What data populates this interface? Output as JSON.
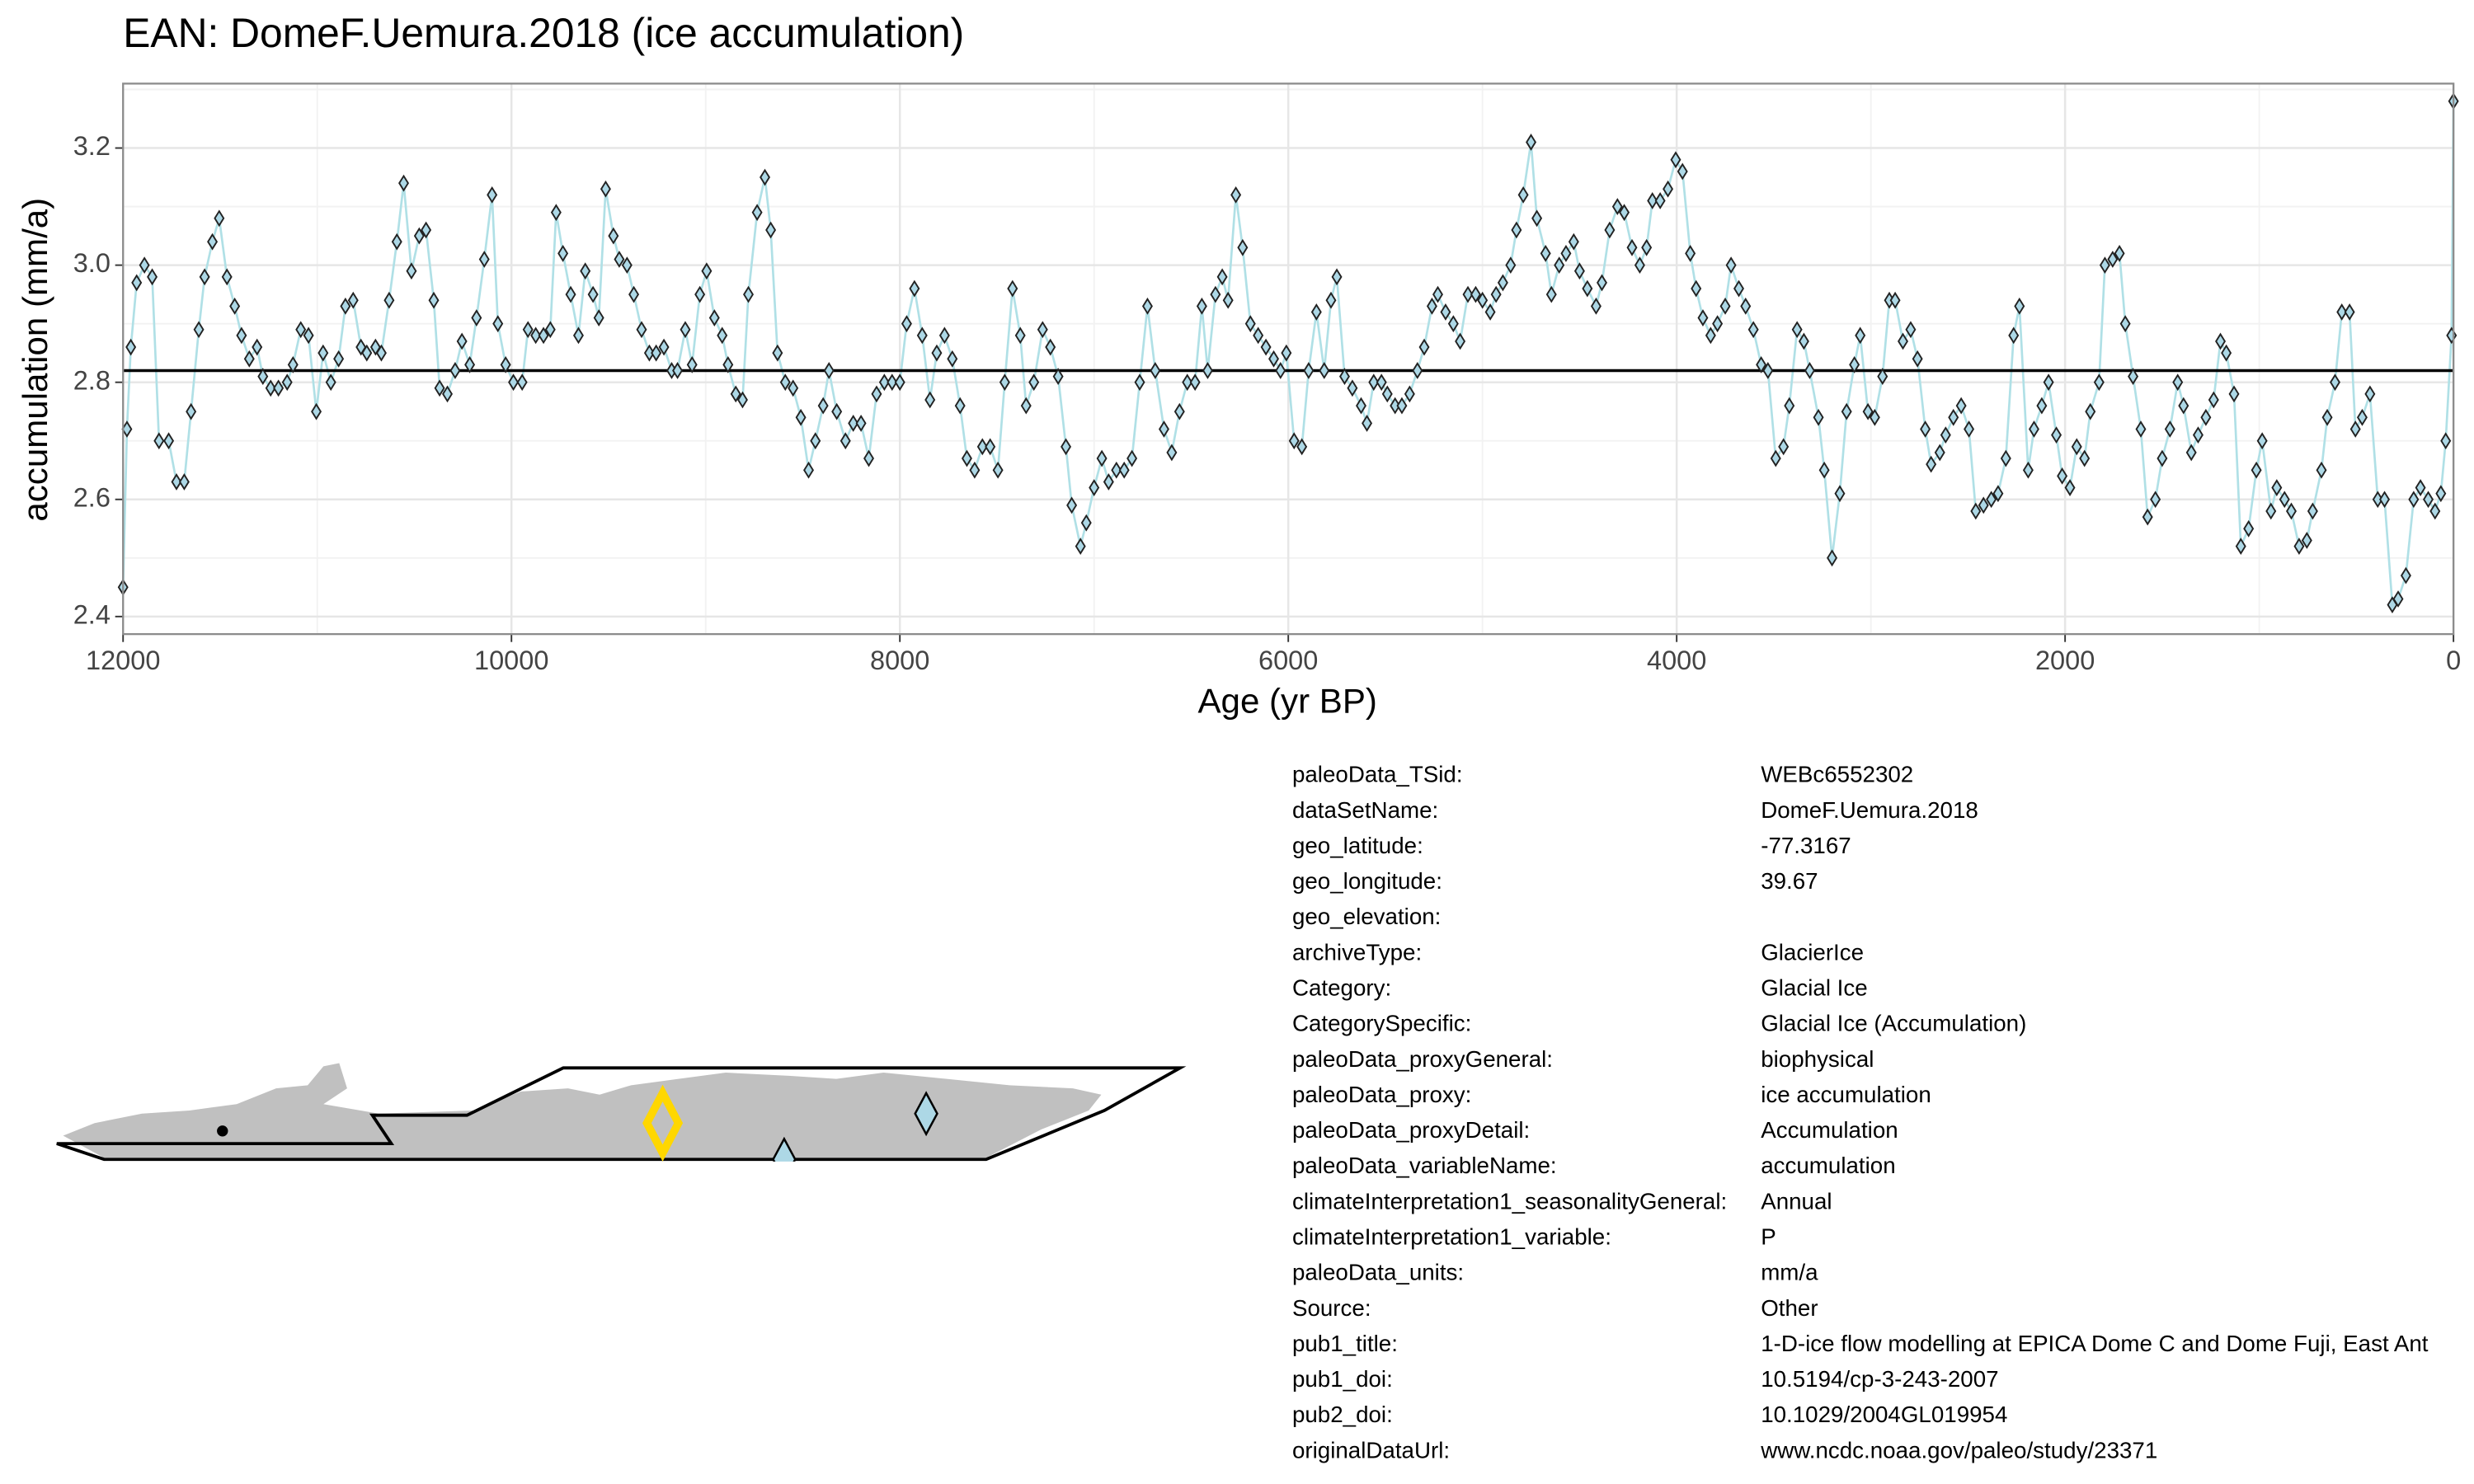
{
  "chart_data": {
    "type": "line",
    "title": "EAN: DomeF.Uemura.2018 (ice accumulation)",
    "x_label": "Age (yr BP)",
    "y_label": "accumulation (mm/a)",
    "xlim": [
      12000,
      0
    ],
    "xticks": [
      12000,
      10000,
      8000,
      6000,
      4000,
      2000,
      0
    ],
    "xminor": [
      11000,
      9000,
      7000,
      5000,
      3000,
      1000
    ],
    "ylim": [
      2.37,
      3.31
    ],
    "yticks": [
      2.4,
      2.6,
      2.8,
      {
        "value": 3,
        "label": "3.0"
      },
      3.2
    ],
    "yminor": [
      2.5,
      2.7,
      2.9,
      3.1,
      3.3
    ],
    "grid": true,
    "mean": 2.82,
    "series": [
      {
        "color": "#b0e0e6",
        "x": [
          12000,
          11980,
          11960,
          11930,
          11890,
          11850,
          11815,
          11765,
          11725,
          11685,
          11650,
          11610,
          11580,
          11540,
          11505,
          11465,
          11425,
          11390,
          11350,
          11310,
          11280,
          11240,
          11200,
          11155,
          11125,
          11085,
          11045,
          11005,
          10970,
          10930,
          10890,
          10855,
          10815,
          10775,
          10745,
          10700,
          10670,
          10630,
          10590,
          10555,
          10515,
          10475,
          10440,
          10400,
          10370,
          10330,
          10290,
          10255,
          10215,
          10180,
          10140,
          10100,
          10070,
          10030,
          9990,
          9945,
          9915,
          9875,
          9835,
          9800,
          9770,
          9735,
          9695,
          9655,
          9620,
          9580,
          9550,
          9515,
          9475,
          9445,
          9405,
          9370,
          9330,
          9290,
          9255,
          9215,
          9175,
          9145,
          9105,
          9070,
          9030,
          8995,
          8955,
          8915,
          8885,
          8845,
          8810,
          8780,
          8735,
          8695,
          8665,
          8630,
          8590,
          8550,
          8510,
          8470,
          8435,
          8395,
          8365,
          8325,
          8280,
          8240,
          8200,
          8160,
          8120,
          8080,
          8040,
          8000,
          7965,
          7925,
          7885,
          7845,
          7810,
          7770,
          7730,
          7690,
          7655,
          7615,
          7575,
          7535,
          7495,
          7460,
          7420,
          7380,
          7350,
          7310,
          7265,
          7225,
          7185,
          7145,
          7115,
          7070,
          7040,
          7000,
          6960,
          6925,
          6885,
          6845,
          6805,
          6765,
          6725,
          6685,
          6640,
          6600,
          6560,
          6520,
          6480,
          6445,
          6415,
          6375,
          6340,
          6310,
          6270,
          6235,
          6195,
          6155,
          6115,
          6075,
          6040,
          6010,
          5970,
          5930,
          5895,
          5855,
          5815,
          5780,
          5750,
          5710,
          5670,
          5625,
          5595,
          5560,
          5520,
          5490,
          5450,
          5415,
          5375,
          5335,
          5300,
          5260,
          5230,
          5190,
          5150,
          5115,
          5075,
          5035,
          5000,
          4960,
          4930,
          4895,
          4855,
          4825,
          4790,
          4750,
          4720,
          4675,
          4645,
          4605,
          4570,
          4530,
          4500,
          4460,
          4415,
          4385,
          4345,
          4305,
          4270,
          4230,
          4190,
          4155,
          4125,
          4085,
          4045,
          4005,
          3970,
          3930,
          3900,
          3865,
          3825,
          3790,
          3750,
          3720,
          3680,
          3645,
          3605,
          3565,
          3530,
          3490,
          3450,
          3420,
          3380,
          3345,
          3315,
          3270,
          3240,
          3200,
          3160,
          3125,
          3085,
          3055,
          3015,
          2980,
          2940,
          2905,
          2875,
          2835,
          2795,
          2760,
          2720,
          2690,
          2645,
          2615,
          2575,
          2535,
          2495,
          2460,
          2420,
          2380,
          2345,
          2305,
          2265,
          2235,
          2190,
          2160,
          2120,
          2085,
          2045,
          2015,
          1975,
          1940,
          1900,
          1870,
          1825,
          1795,
          1755,
          1720,
          1690,
          1650,
          1610,
          1575,
          1535,
          1500,
          1460,
          1420,
          1390,
          1350,
          1315,
          1275,
          1235,
          1200,
          1170,
          1130,
          1095,
          1055,
          1015,
          985,
          940,
          910,
          870,
          835,
          795,
          755,
          725,
          680,
          650,
          610,
          575,
          535,
          505,
          470,
          430,
          390,
          355,
          315,
          285,
          245,
          205,
          170,
          130,
          95,
          65,
          40,
          10,
          0
        ],
        "values": [
          2.45,
          2.72,
          2.86,
          2.97,
          3.0,
          2.98,
          2.7,
          2.7,
          2.63,
          2.63,
          2.75,
          2.89,
          2.98,
          3.04,
          3.08,
          2.98,
          2.93,
          2.88,
          2.84,
          2.86,
          2.81,
          2.79,
          2.79,
          2.8,
          2.83,
          2.89,
          2.88,
          2.75,
          2.85,
          2.8,
          2.84,
          2.93,
          2.94,
          2.86,
          2.85,
          2.86,
          2.85,
          2.94,
          3.04,
          3.14,
          2.99,
          3.05,
          3.06,
          2.94,
          2.79,
          2.78,
          2.82,
          2.87,
          2.83,
          2.91,
          3.01,
          3.12,
          2.9,
          2.83,
          2.8,
          2.8,
          2.89,
          2.88,
          2.88,
          2.89,
          3.09,
          3.02,
          2.95,
          2.88,
          2.99,
          2.95,
          2.91,
          3.13,
          3.05,
          3.01,
          3.0,
          2.95,
          2.89,
          2.85,
          2.85,
          2.86,
          2.82,
          2.82,
          2.89,
          2.83,
          2.95,
          2.99,
          2.91,
          2.88,
          2.83,
          2.78,
          2.77,
          2.95,
          3.09,
          3.15,
          3.06,
          2.85,
          2.8,
          2.79,
          2.74,
          2.65,
          2.7,
          2.76,
          2.82,
          2.75,
          2.7,
          2.73,
          2.73,
          2.67,
          2.78,
          2.8,
          2.8,
          2.8,
          2.9,
          2.96,
          2.88,
          2.77,
          2.85,
          2.88,
          2.84,
          2.76,
          2.67,
          2.65,
          2.69,
          2.69,
          2.65,
          2.8,
          2.96,
          2.88,
          2.76,
          2.8,
          2.89,
          2.86,
          2.81,
          2.69,
          2.59,
          2.52,
          2.56,
          2.62,
          2.67,
          2.63,
          2.65,
          2.65,
          2.67,
          2.8,
          2.93,
          2.82,
          2.72,
          2.68,
          2.75,
          2.8,
          2.8,
          2.93,
          2.82,
          2.95,
          2.98,
          2.94,
          3.12,
          3.03,
          2.9,
          2.88,
          2.86,
          2.84,
          2.82,
          2.85,
          2.7,
          2.69,
          2.82,
          2.92,
          2.82,
          2.94,
          2.98,
          2.81,
          2.79,
          2.76,
          2.73,
          2.8,
          2.8,
          2.78,
          2.76,
          2.76,
          2.78,
          2.82,
          2.86,
          2.93,
          2.95,
          2.92,
          2.9,
          2.87,
          2.95,
          2.95,
          2.94,
          2.92,
          2.95,
          2.97,
          3.0,
          3.06,
          3.12,
          3.21,
          3.08,
          3.02,
          2.95,
          3.0,
          3.02,
          3.04,
          2.99,
          2.96,
          2.93,
          2.97,
          3.06,
          3.1,
          3.09,
          3.03,
          3.0,
          3.03,
          3.11,
          3.11,
          3.13,
          3.18,
          3.16,
          3.02,
          2.96,
          2.91,
          2.88,
          2.9,
          2.93,
          3.0,
          2.96,
          2.93,
          2.89,
          2.83,
          2.82,
          2.67,
          2.69,
          2.76,
          2.89,
          2.87,
          2.82,
          2.74,
          2.65,
          2.5,
          2.61,
          2.75,
          2.83,
          2.88,
          2.75,
          2.74,
          2.81,
          2.94,
          2.94,
          2.87,
          2.89,
          2.84,
          2.72,
          2.66,
          2.68,
          2.71,
          2.74,
          2.76,
          2.72,
          2.58,
          2.59,
          2.6,
          2.61,
          2.67,
          2.88,
          2.93,
          2.65,
          2.72,
          2.76,
          2.8,
          2.71,
          2.64,
          2.62,
          2.69,
          2.67,
          2.75,
          2.8,
          3.0,
          3.01,
          3.02,
          2.9,
          2.81,
          2.72,
          2.57,
          2.6,
          2.67,
          2.72,
          2.8,
          2.76,
          2.68,
          2.71,
          2.74,
          2.77,
          2.87,
          2.85,
          2.78,
          2.52,
          2.55,
          2.65,
          2.7,
          2.58,
          2.62,
          2.6,
          2.58,
          2.52,
          2.53,
          2.58,
          2.65,
          2.74,
          2.8,
          2.92,
          2.92,
          2.72,
          2.74,
          2.78,
          2.6,
          2.6,
          2.42,
          2.43,
          2.47,
          2.6,
          2.62,
          2.6,
          2.58,
          2.61,
          2.7,
          2.88,
          3.28
        ]
      }
    ]
  },
  "metadata": {
    "rows": [
      [
        "paleoData_TSid:",
        "WEBc6552302"
      ],
      [
        "dataSetName:",
        "DomeF.Uemura.2018"
      ],
      [
        "geo_latitude:",
        "-77.3167"
      ],
      [
        "geo_longitude:",
        "39.67"
      ],
      [
        "geo_elevation:"
      ],
      [
        "archiveType:",
        "GlacierIce"
      ],
      [
        "Category:",
        "Glacial Ice"
      ],
      [
        "CategorySpecific:",
        "Glacial Ice (Accumulation)"
      ],
      [
        "paleoData_proxyGeneral:",
        "biophysical"
      ],
      [
        "paleoData_proxy:",
        "ice accumulation"
      ],
      [
        "paleoData_proxyDetail:",
        "Accumulation"
      ],
      [
        "paleoData_variableName:",
        "accumulation"
      ],
      [
        "climateInterpretation1_seasonalityGeneral:",
        "Annual"
      ],
      [
        "climateInterpretation1_variable:",
        "P"
      ],
      [
        "paleoData_units:",
        "mm/a"
      ],
      [
        "Source:",
        "Other"
      ],
      [
        "pub1_title:",
        "1-D-ice flow modelling at EPICA Dome C and Dome Fuji, East Ant"
      ],
      [
        "pub1_doi:",
        "10.5194/cp-3-243-2007"
      ],
      [
        "pub2_doi:",
        "10.1029/2004GL019954"
      ],
      [
        "originalDataUrl:",
        "www.ncdc.noaa.gov/paleo/study/23371"
      ]
    ]
  }
}
